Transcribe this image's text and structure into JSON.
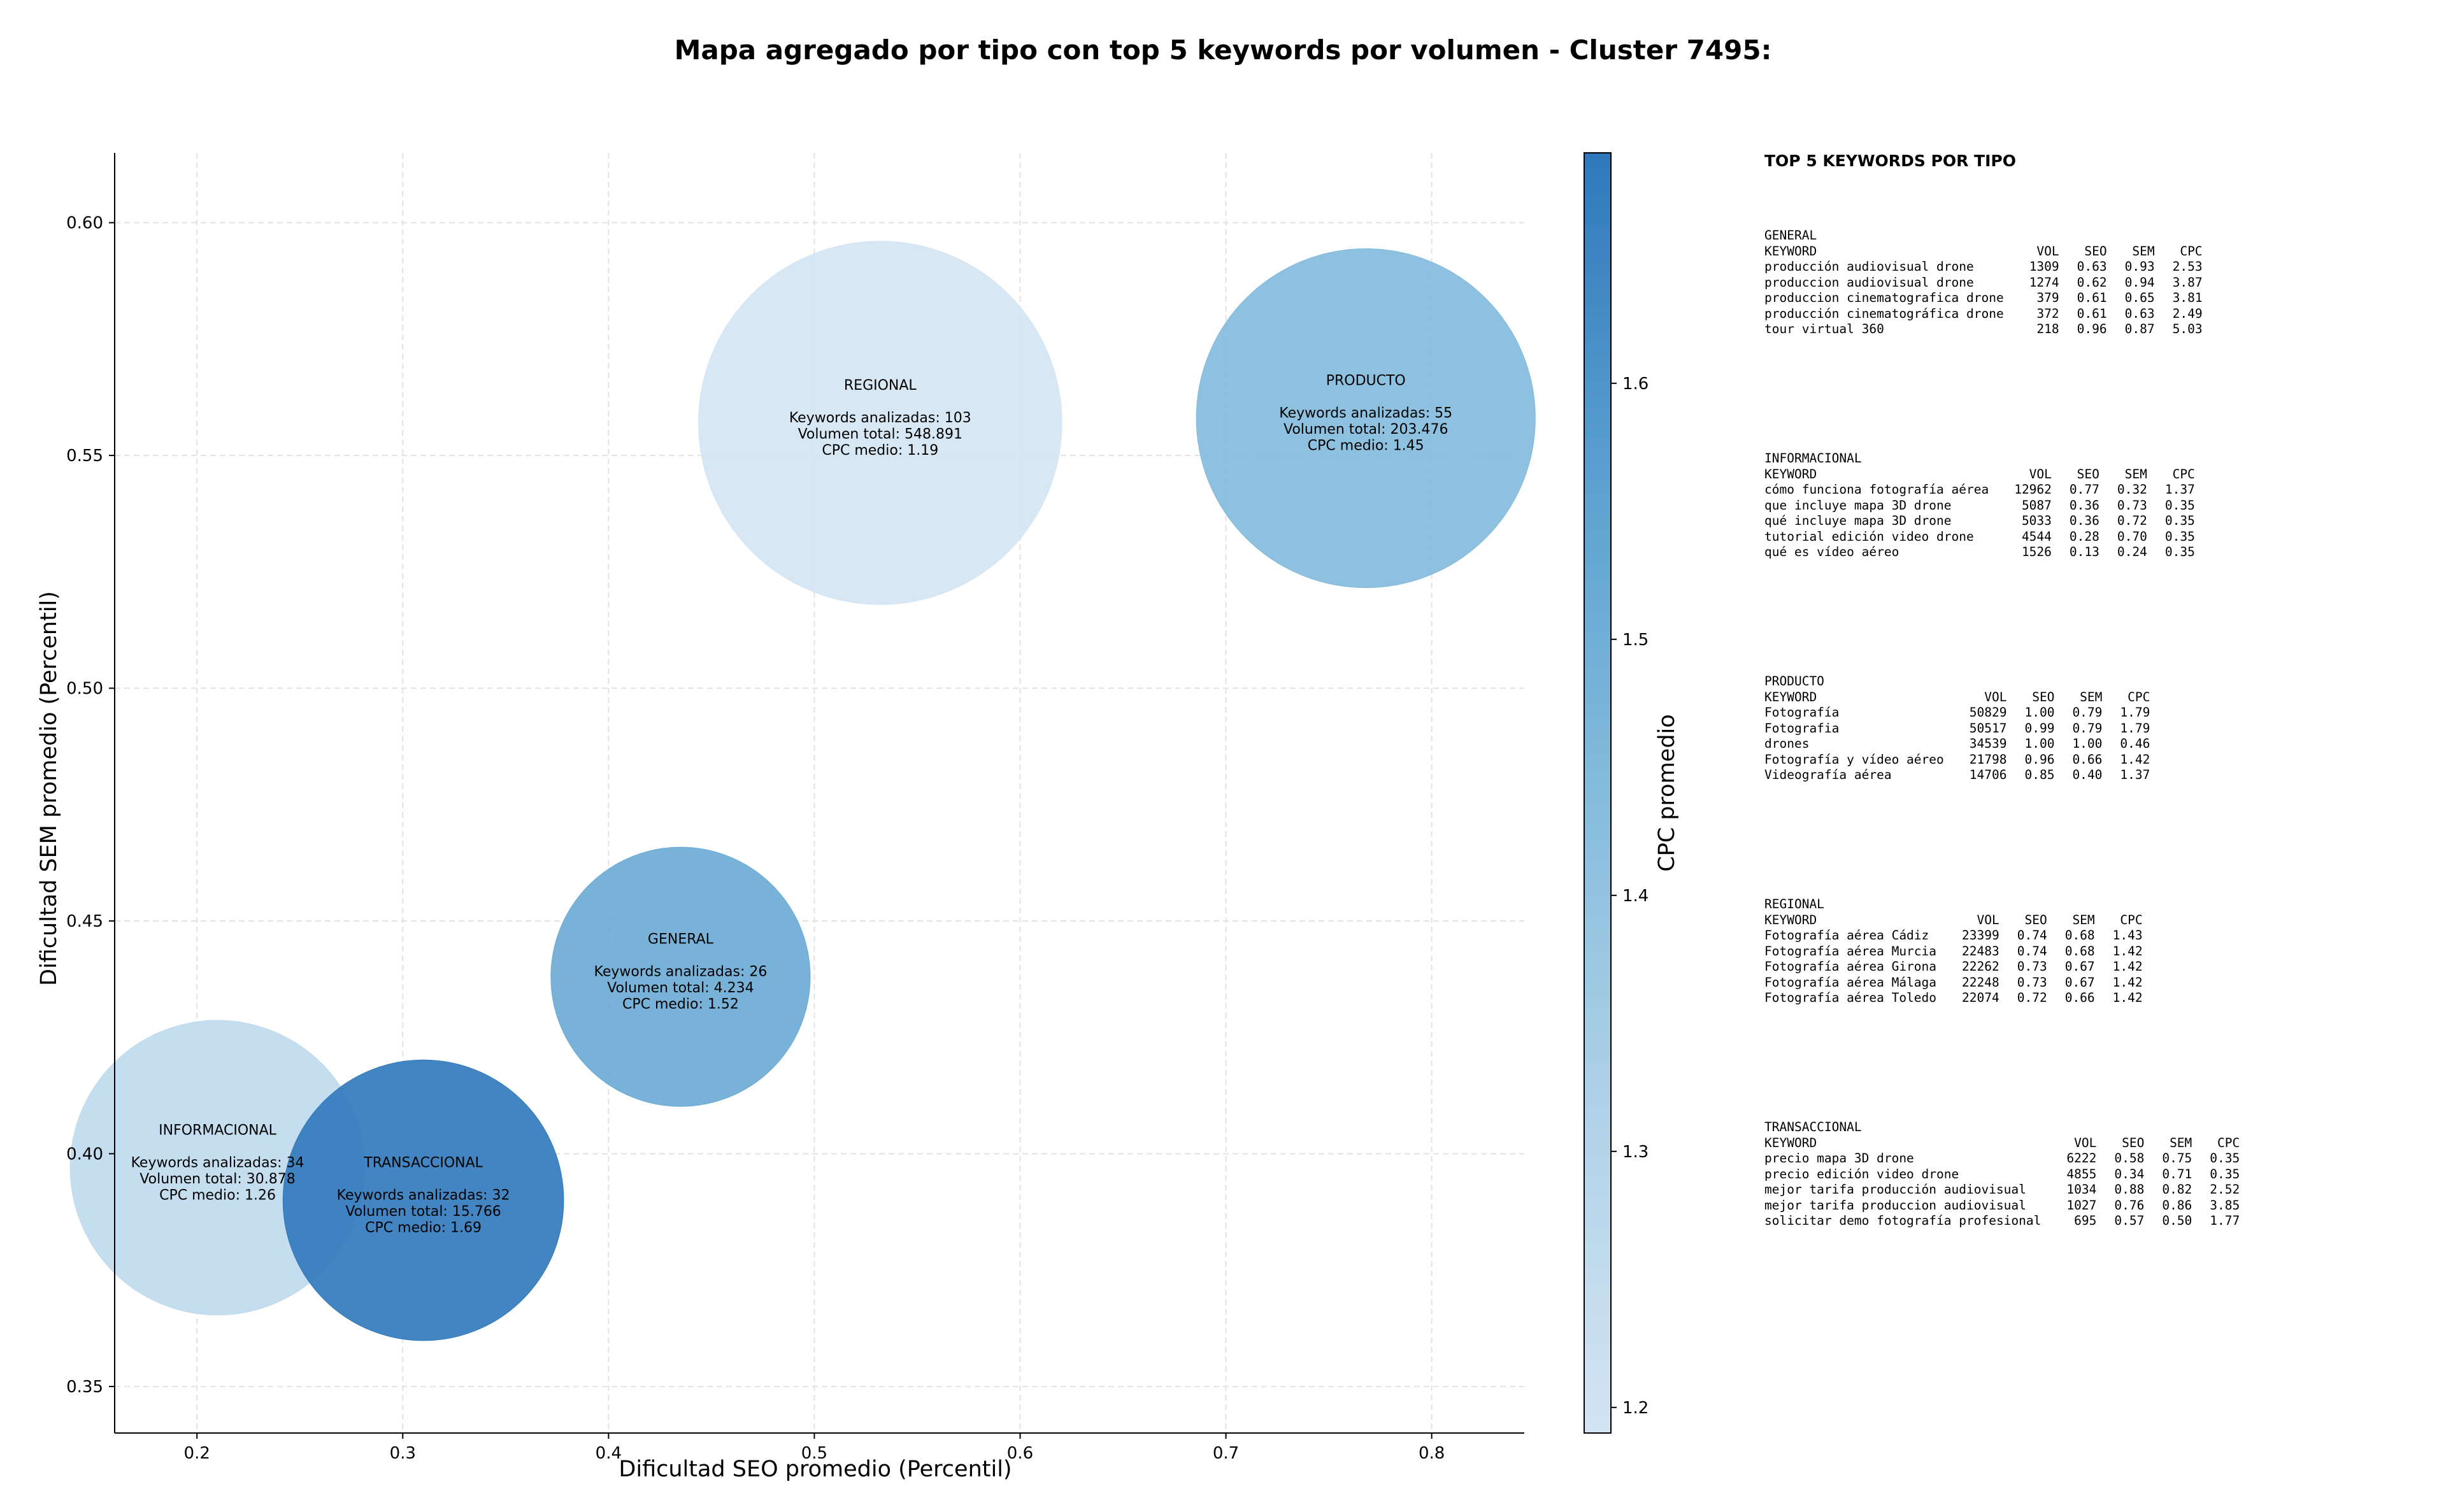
{
  "title": "Mapa agregado por tipo con top 5 keywords por volumen - Cluster 7495:",
  "chart_data": {
    "type": "scatter",
    "title": "Mapa agregado por tipo con top 5 keywords por volumen - Cluster 7495:",
    "xlabel": "Dificultad SEO promedio (Percentil)",
    "ylabel": "Dificultad SEM promedio (Percentil)",
    "xlim": [
      0.16,
      0.845
    ],
    "ylim": [
      0.34,
      0.615
    ],
    "xticks": [
      "0.2",
      "0.3",
      "0.4",
      "0.5",
      "0.6",
      "0.7",
      "0.8"
    ],
    "yticks": [
      "0.35",
      "0.40",
      "0.45",
      "0.50",
      "0.55",
      "0.60"
    ],
    "grid": true,
    "colorbar": {
      "label": "CPC promedio",
      "range": [
        1.19,
        1.69
      ],
      "ticks": [
        "1.2",
        "1.3",
        "1.4",
        "1.5",
        "1.6"
      ],
      "colormap": "Blues"
    },
    "bubble_size_encodes": "Volumen total",
    "points": [
      {
        "type": "INFORMACIONAL",
        "x": 0.21,
        "y": 0.397,
        "keywords": 34,
        "volume": 30878,
        "cpc": 1.26,
        "label_type": "INFORMACIONAL",
        "label_kw": "Keywords analizadas: 34",
        "label_vol": "Volumen total: 30.878",
        "label_cpc": "CPC medio: 1.26"
      },
      {
        "type": "TRANSACCIONAL",
        "x": 0.31,
        "y": 0.39,
        "keywords": 32,
        "volume": 15766,
        "cpc": 1.69,
        "label_type": "TRANSACCIONAL",
        "label_kw": "Keywords analizadas: 32",
        "label_vol": "Volumen total: 15.766",
        "label_cpc": "CPC medio: 1.69"
      },
      {
        "type": "GENERAL",
        "x": 0.435,
        "y": 0.438,
        "keywords": 26,
        "volume": 4234,
        "cpc": 1.52,
        "label_type": "GENERAL",
        "label_kw": "Keywords analizadas: 26",
        "label_vol": "Volumen total: 4.234",
        "label_cpc": "CPC medio: 1.52"
      },
      {
        "type": "REGIONAL",
        "x": 0.532,
        "y": 0.557,
        "keywords": 103,
        "volume": 548891,
        "cpc": 1.19,
        "label_type": "REGIONAL",
        "label_kw": "Keywords analizadas: 103",
        "label_vol": "Volumen total: 548.891",
        "label_cpc": "CPC medio: 1.19"
      },
      {
        "type": "PRODUCTO",
        "x": 0.768,
        "y": 0.558,
        "keywords": 55,
        "volume": 203476,
        "cpc": 1.45,
        "label_type": "PRODUCTO",
        "label_kw": "Keywords analizadas: 55",
        "label_vol": "Volumen total: 203.476",
        "label_cpc": "CPC medio: 1.45"
      }
    ]
  },
  "panel": {
    "title": "TOP 5 KEYWORDS POR TIPO",
    "headers": [
      "KEYWORD",
      "VOL",
      "SEO",
      "SEM",
      "CPC"
    ],
    "blocks": [
      {
        "type": "GENERAL",
        "rows": [
          [
            "producción audiovisual drone",
            "1309",
            "0.63",
            "0.93",
            "2.53"
          ],
          [
            "produccion audiovisual drone",
            "1274",
            "0.62",
            "0.94",
            "3.87"
          ],
          [
            "produccion cinematografica drone",
            "379",
            "0.61",
            "0.65",
            "3.81"
          ],
          [
            "producción cinematográfica drone",
            "372",
            "0.61",
            "0.63",
            "2.49"
          ],
          [
            "tour virtual 360",
            "218",
            "0.96",
            "0.87",
            "5.03"
          ]
        ]
      },
      {
        "type": "INFORMACIONAL",
        "rows": [
          [
            "cómo funciona fotografía aérea",
            "12962",
            "0.77",
            "0.32",
            "1.37"
          ],
          [
            "que incluye mapa 3D drone",
            "5087",
            "0.36",
            "0.73",
            "0.35"
          ],
          [
            "qué incluye mapa 3D drone",
            "5033",
            "0.36",
            "0.72",
            "0.35"
          ],
          [
            "tutorial edición video drone",
            "4544",
            "0.28",
            "0.70",
            "0.35"
          ],
          [
            "qué es vídeo aéreo",
            "1526",
            "0.13",
            "0.24",
            "0.35"
          ]
        ]
      },
      {
        "type": "PRODUCTO",
        "rows": [
          [
            "Fotografía",
            "50829",
            "1.00",
            "0.79",
            "1.79"
          ],
          [
            "Fotografia",
            "50517",
            "0.99",
            "0.79",
            "1.79"
          ],
          [
            "drones",
            "34539",
            "1.00",
            "1.00",
            "0.46"
          ],
          [
            "Fotografía y vídeo aéreo",
            "21798",
            "0.96",
            "0.66",
            "1.42"
          ],
          [
            "Videografía aérea",
            "14706",
            "0.85",
            "0.40",
            "1.37"
          ]
        ]
      },
      {
        "type": "REGIONAL",
        "rows": [
          [
            "Fotografía aérea Cádiz",
            "23399",
            "0.74",
            "0.68",
            "1.43"
          ],
          [
            "Fotografía aérea Murcia",
            "22483",
            "0.74",
            "0.68",
            "1.42"
          ],
          [
            "Fotografía aérea Girona",
            "22262",
            "0.73",
            "0.67",
            "1.42"
          ],
          [
            "Fotografía aérea Málaga",
            "22248",
            "0.73",
            "0.67",
            "1.42"
          ],
          [
            "Fotografía aérea Toledo",
            "22074",
            "0.72",
            "0.66",
            "1.42"
          ]
        ]
      },
      {
        "type": "TRANSACCIONAL",
        "rows": [
          [
            "precio mapa 3D drone",
            "6222",
            "0.58",
            "0.75",
            "0.35"
          ],
          [
            "precio edición video drone",
            "4855",
            "0.34",
            "0.71",
            "0.35"
          ],
          [
            "mejor tarifa producción audiovisual",
            "1034",
            "0.88",
            "0.82",
            "2.52"
          ],
          [
            "mejor tarifa produccion audiovisual",
            "1027",
            "0.76",
            "0.86",
            "3.85"
          ],
          [
            "solicitar demo fotografía profesional",
            "695",
            "0.57",
            "0.50",
            "1.77"
          ]
        ]
      }
    ]
  }
}
